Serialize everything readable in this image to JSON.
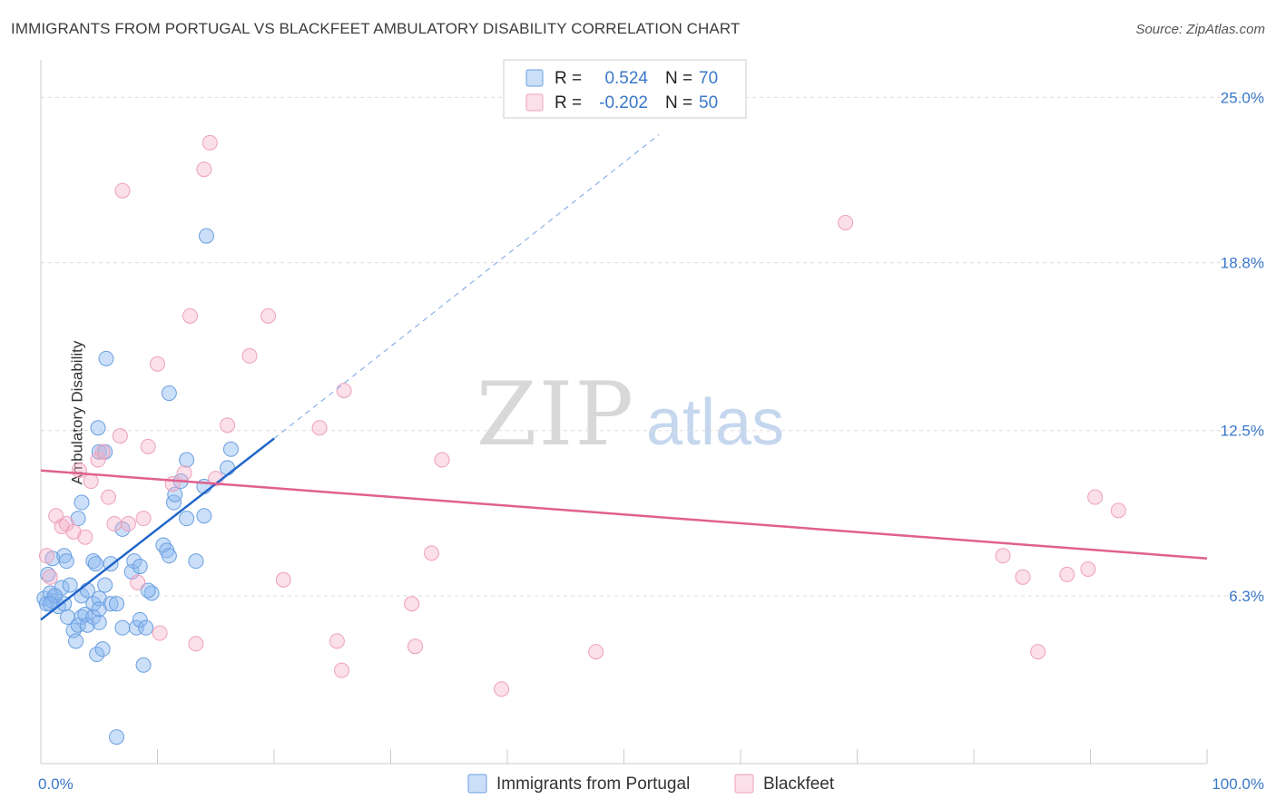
{
  "title": "IMMIGRANTS FROM PORTUGAL VS BLACKFEET AMBULATORY DISABILITY CORRELATION CHART",
  "source": "Source: ZipAtlas.com",
  "watermark": {
    "zip": "ZIP",
    "atlas": "atlas"
  },
  "colors": {
    "blue": "#6a9fe0",
    "blue_line": "#2166c9",
    "pink": "#f0a0bc",
    "pink_line": "#e06090",
    "axis_text": "#3a78c9"
  },
  "legend_top": [
    {
      "r_label": "R =",
      "r_value": "0.524",
      "n_label": "N =",
      "n_value": "70",
      "color": "blue"
    },
    {
      "r_label": "R =",
      "r_value": "-0.202",
      "n_label": "N =",
      "n_value": "50",
      "color": "pink"
    }
  ],
  "chart_data": {
    "type": "scatter",
    "title": "IMMIGRANTS FROM PORTUGAL VS BLACKFEET AMBULATORY DISABILITY CORRELATION CHART",
    "xlabel": "",
    "ylabel": "Ambulatory Disability",
    "xlim": [
      0,
      100
    ],
    "ylim": [
      0,
      26
    ],
    "x_tick_labels": [
      "0.0%",
      "100.0%"
    ],
    "y_ticks": [
      6.3,
      12.5,
      18.8,
      25.0
    ],
    "y_tick_labels": [
      "6.3%",
      "12.5%",
      "18.8%",
      "25.0%"
    ],
    "grid": true,
    "legend_position": "bottom",
    "series": [
      {
        "name": "Immigrants from Portugal",
        "color": "blue",
        "trend": {
          "x0": 0,
          "y0": 5.4,
          "x1": 20,
          "y1": 12.2,
          "dash_to_x": 53,
          "dash_to_y": 23.6
        },
        "points": [
          [
            0.3,
            6.2
          ],
          [
            0.5,
            6.0
          ],
          [
            0.8,
            6.4
          ],
          [
            1.0,
            6.1
          ],
          [
            1.2,
            6.3
          ],
          [
            1.5,
            5.9
          ],
          [
            1.8,
            6.6
          ],
          [
            2.0,
            6.0
          ],
          [
            2.3,
            5.5
          ],
          [
            2.5,
            6.7
          ],
          [
            0.6,
            7.1
          ],
          [
            1.0,
            7.7
          ],
          [
            2.0,
            7.8
          ],
          [
            2.2,
            7.6
          ],
          [
            3.5,
            6.3
          ],
          [
            4.0,
            6.5
          ],
          [
            4.5,
            6.0
          ],
          [
            5.0,
            6.2
          ],
          [
            5.5,
            6.7
          ],
          [
            6.0,
            6.0
          ],
          [
            2.8,
            5.0
          ],
          [
            3.0,
            4.6
          ],
          [
            3.2,
            5.2
          ],
          [
            3.5,
            5.5
          ],
          [
            3.8,
            5.6
          ],
          [
            4.0,
            5.2
          ],
          [
            4.5,
            5.5
          ],
          [
            5.0,
            5.3
          ],
          [
            6.5,
            6.0
          ],
          [
            7.0,
            5.1
          ],
          [
            4.8,
            4.1
          ],
          [
            5.3,
            4.3
          ],
          [
            8.2,
            5.1
          ],
          [
            8.5,
            5.4
          ],
          [
            8.8,
            3.7
          ],
          [
            9.5,
            6.4
          ],
          [
            9.2,
            6.5
          ],
          [
            7.8,
            7.2
          ],
          [
            8.0,
            7.6
          ],
          [
            8.5,
            7.4
          ],
          [
            4.5,
            7.6
          ],
          [
            4.7,
            7.5
          ],
          [
            6.0,
            7.5
          ],
          [
            7.0,
            8.8
          ],
          [
            3.2,
            9.2
          ],
          [
            3.5,
            9.8
          ],
          [
            10.5,
            8.2
          ],
          [
            10.8,
            8.0
          ],
          [
            11.0,
            7.8
          ],
          [
            12.5,
            9.2
          ],
          [
            13.3,
            7.6
          ],
          [
            14.0,
            9.3
          ],
          [
            11.4,
            9.8
          ],
          [
            11.5,
            10.1
          ],
          [
            12.0,
            10.6
          ],
          [
            14.0,
            10.4
          ],
          [
            16.0,
            11.1
          ],
          [
            16.3,
            11.8
          ],
          [
            12.5,
            11.4
          ],
          [
            5.0,
            11.7
          ],
          [
            5.5,
            11.7
          ],
          [
            4.9,
            12.6
          ],
          [
            5.6,
            15.2
          ],
          [
            11.0,
            13.9
          ],
          [
            14.2,
            19.8
          ],
          [
            6.5,
            1.0
          ],
          [
            9.0,
            5.1
          ],
          [
            5.0,
            5.8
          ],
          [
            1.2,
            6.3
          ],
          [
            0.8,
            6.0
          ]
        ]
      },
      {
        "name": "Blackfeet",
        "color": "pink",
        "trend": {
          "x0": 0,
          "y0": 11.0,
          "x1": 100,
          "y1": 7.7
        },
        "points": [
          [
            0.5,
            7.8
          ],
          [
            0.8,
            7.0
          ],
          [
            1.3,
            9.3
          ],
          [
            1.8,
            8.9
          ],
          [
            2.2,
            9.0
          ],
          [
            2.8,
            8.7
          ],
          [
            3.3,
            11.0
          ],
          [
            3.8,
            8.5
          ],
          [
            4.3,
            10.6
          ],
          [
            4.9,
            11.4
          ],
          [
            5.3,
            11.7
          ],
          [
            5.8,
            10.0
          ],
          [
            6.3,
            9.0
          ],
          [
            6.8,
            12.3
          ],
          [
            7.5,
            9.0
          ],
          [
            8.3,
            6.8
          ],
          [
            8.8,
            9.2
          ],
          [
            9.2,
            11.9
          ],
          [
            10.2,
            4.9
          ],
          [
            11.3,
            10.5
          ],
          [
            12.3,
            10.9
          ],
          [
            13.3,
            4.5
          ],
          [
            15.0,
            10.7
          ],
          [
            16.0,
            12.7
          ],
          [
            17.9,
            15.3
          ],
          [
            19.5,
            16.8
          ],
          [
            20.8,
            6.9
          ],
          [
            23.9,
            12.6
          ],
          [
            25.4,
            4.6
          ],
          [
            25.8,
            3.5
          ],
          [
            26.0,
            14.0
          ],
          [
            10.0,
            15.0
          ],
          [
            7.0,
            21.5
          ],
          [
            12.8,
            16.8
          ],
          [
            14.0,
            22.3
          ],
          [
            14.5,
            23.3
          ],
          [
            31.8,
            6.0
          ],
          [
            32.1,
            4.4
          ],
          [
            33.5,
            7.9
          ],
          [
            34.4,
            11.4
          ],
          [
            39.5,
            2.8
          ],
          [
            47.6,
            4.2
          ],
          [
            69.0,
            20.3
          ],
          [
            82.5,
            7.8
          ],
          [
            84.2,
            7.0
          ],
          [
            85.5,
            4.2
          ],
          [
            88.0,
            7.1
          ],
          [
            89.8,
            7.3
          ],
          [
            90.4,
            10.0
          ],
          [
            92.4,
            9.5
          ]
        ]
      }
    ]
  },
  "legend_bottom": [
    {
      "label": "Immigrants from Portugal",
      "color": "blue"
    },
    {
      "label": "Blackfeet",
      "color": "pink"
    }
  ]
}
